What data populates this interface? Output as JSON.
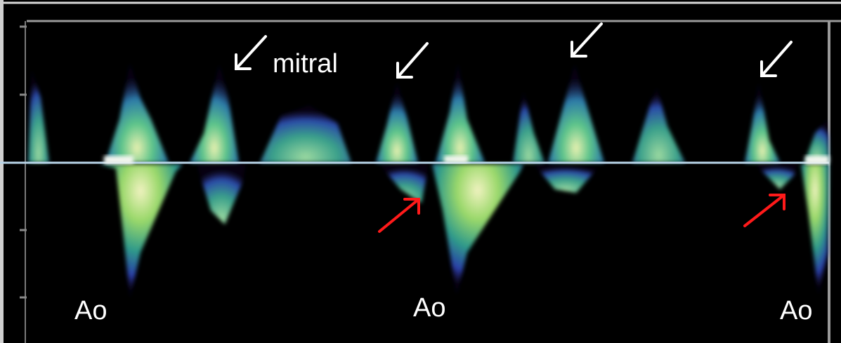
{
  "labels": {
    "mitral": "mitral",
    "ao_1": "Ao",
    "ao_2": "Ao",
    "ao_3": "Ao"
  },
  "colors": {
    "background": "#000000",
    "baseline": "#b8d4e8",
    "white_arrow": "#ffffff",
    "red_arrow": "#ff1a1a",
    "spectrum_core": "#e8f0b0",
    "spectrum_mid": "#3fb08a",
    "spectrum_edge": "#2a3fa8"
  },
  "annotations": {
    "white_arrows": 4,
    "red_arrows": 2
  }
}
